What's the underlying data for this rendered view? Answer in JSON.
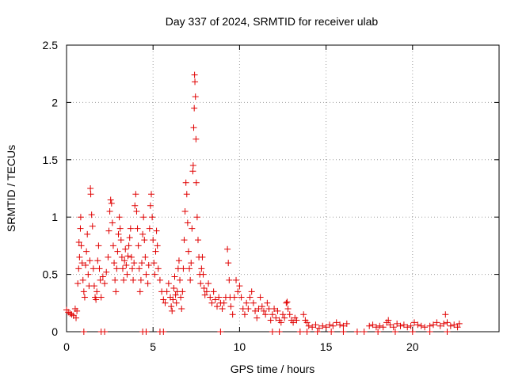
{
  "chart_data": {
    "type": "scatter",
    "title": "Day 337 of 2024, SRMTID for receiver ulab",
    "xlabel": "GPS time / hours",
    "ylabel": "SRMTID / TECUs",
    "xlim": [
      0,
      25
    ],
    "ylim": [
      0,
      2.5
    ],
    "xticks": [
      0,
      5,
      10,
      15,
      20
    ],
    "xtick_labels": [
      "0",
      "5",
      "10",
      "15",
      "20"
    ],
    "yticks": [
      0,
      0.5,
      1,
      1.5,
      2,
      2.5
    ],
    "ytick_labels": [
      "0",
      "0.5",
      "1",
      "1.5",
      "2",
      "2.5"
    ],
    "grid": true,
    "marker": "+",
    "color": "#e00000",
    "series": [
      {
        "name": "SRMTID",
        "points": [
          [
            0.0,
            0.19
          ],
          [
            0.1,
            0.17
          ],
          [
            0.2,
            0.16
          ],
          [
            0.3,
            0.15
          ],
          [
            0.4,
            0.14
          ],
          [
            0.5,
            0.2
          ],
          [
            0.55,
            0.12
          ],
          [
            0.6,
            0.18
          ],
          [
            0.65,
            0.42
          ],
          [
            0.7,
            0.55
          ],
          [
            0.72,
            0.78
          ],
          [
            0.75,
            0.65
          ],
          [
            0.8,
            0.9
          ],
          [
            0.82,
            1.0
          ],
          [
            0.85,
            0.75
          ],
          [
            0.9,
            0.6
          ],
          [
            0.95,
            0.45
          ],
          [
            1.0,
            0.35
          ],
          [
            1.05,
            0.3
          ],
          [
            1.1,
            0.58
          ],
          [
            1.15,
            0.7
          ],
          [
            1.2,
            0.85
          ],
          [
            1.25,
            0.5
          ],
          [
            1.3,
            0.4
          ],
          [
            1.35,
            0.62
          ],
          [
            1.38,
            1.25
          ],
          [
            1.4,
            1.2
          ],
          [
            1.45,
            1.02
          ],
          [
            1.5,
            0.92
          ],
          [
            1.55,
            0.55
          ],
          [
            1.6,
            0.4
          ],
          [
            1.65,
            0.3
          ],
          [
            1.7,
            0.28
          ],
          [
            1.75,
            0.35
          ],
          [
            1.8,
            0.62
          ],
          [
            1.85,
            0.75
          ],
          [
            1.9,
            0.55
          ],
          [
            1.95,
            0.45
          ],
          [
            2.0,
            0.3
          ],
          [
            2.1,
            0.48
          ],
          [
            2.2,
            0.42
          ],
          [
            2.3,
            0.52
          ],
          [
            2.4,
            0.65
          ],
          [
            2.45,
            0.88
          ],
          [
            2.5,
            1.05
          ],
          [
            2.55,
            1.15
          ],
          [
            2.6,
            1.12
          ],
          [
            2.65,
            0.95
          ],
          [
            2.7,
            0.75
          ],
          [
            2.75,
            0.6
          ],
          [
            2.8,
            0.45
          ],
          [
            2.85,
            0.35
          ],
          [
            2.9,
            0.55
          ],
          [
            2.95,
            0.7
          ],
          [
            3.0,
            0.85
          ],
          [
            3.05,
            1.0
          ],
          [
            3.1,
            0.9
          ],
          [
            3.15,
            0.8
          ],
          [
            3.2,
            0.65
          ],
          [
            3.25,
            0.55
          ],
          [
            3.3,
            0.45
          ],
          [
            3.35,
            0.62
          ],
          [
            3.4,
            0.72
          ],
          [
            3.45,
            0.58
          ],
          [
            3.5,
            0.5
          ],
          [
            3.55,
            0.66
          ],
          [
            3.6,
            0.75
          ],
          [
            3.65,
            0.82
          ],
          [
            3.7,
            0.9
          ],
          [
            3.75,
            0.65
          ],
          [
            3.8,
            0.55
          ],
          [
            3.85,
            0.45
          ],
          [
            3.9,
            0.6
          ],
          [
            3.95,
            1.1
          ],
          [
            4.0,
            1.2
          ],
          [
            4.05,
            1.05
          ],
          [
            4.1,
            0.9
          ],
          [
            4.15,
            0.75
          ],
          [
            4.2,
            0.55
          ],
          [
            4.25,
            0.35
          ],
          [
            4.3,
            0.45
          ],
          [
            4.35,
            0.6
          ],
          [
            4.4,
            0.85
          ],
          [
            4.45,
            1.0
          ],
          [
            4.5,
            0.8
          ],
          [
            4.55,
            0.65
          ],
          [
            4.6,
            0.5
          ],
          [
            4.7,
            0.42
          ],
          [
            4.75,
            0.58
          ],
          [
            4.8,
            0.9
          ],
          [
            4.85,
            1.1
          ],
          [
            4.9,
            1.2
          ],
          [
            4.95,
            1.0
          ],
          [
            5.0,
            0.8
          ],
          [
            5.05,
            0.6
          ],
          [
            5.1,
            0.5
          ],
          [
            5.15,
            0.7
          ],
          [
            5.2,
            0.88
          ],
          [
            5.25,
            0.75
          ],
          [
            5.3,
            0.55
          ],
          [
            5.4,
            0.45
          ],
          [
            5.5,
            0.35
          ],
          [
            5.6,
            0.28
          ],
          [
            5.7,
            0.25
          ],
          [
            5.8,
            0.35
          ],
          [
            5.9,
            0.42
          ],
          [
            6.0,
            0.3
          ],
          [
            6.05,
            0.22
          ],
          [
            6.1,
            0.18
          ],
          [
            6.15,
            0.28
          ],
          [
            6.2,
            0.38
          ],
          [
            6.25,
            0.48
          ],
          [
            6.3,
            0.32
          ],
          [
            6.35,
            0.25
          ],
          [
            6.4,
            0.35
          ],
          [
            6.45,
            0.55
          ],
          [
            6.5,
            0.62
          ],
          [
            6.55,
            0.45
          ],
          [
            6.6,
            0.3
          ],
          [
            6.65,
            0.2
          ],
          [
            6.7,
            0.35
          ],
          [
            6.75,
            0.55
          ],
          [
            6.8,
            0.8
          ],
          [
            6.85,
            1.05
          ],
          [
            6.9,
            1.3
          ],
          [
            6.95,
            1.2
          ],
          [
            7.0,
            0.95
          ],
          [
            7.05,
            0.7
          ],
          [
            7.1,
            0.55
          ],
          [
            7.15,
            0.45
          ],
          [
            7.2,
            0.6
          ],
          [
            7.25,
            0.9
          ],
          [
            7.3,
            1.4
          ],
          [
            7.32,
            1.45
          ],
          [
            7.35,
            1.78
          ],
          [
            7.38,
            1.95
          ],
          [
            7.4,
            2.24
          ],
          [
            7.42,
            2.18
          ],
          [
            7.45,
            2.05
          ],
          [
            7.48,
            1.68
          ],
          [
            7.5,
            1.3
          ],
          [
            7.55,
            1.0
          ],
          [
            7.6,
            0.8
          ],
          [
            7.65,
            0.65
          ],
          [
            7.7,
            0.5
          ],
          [
            7.75,
            0.42
          ],
          [
            7.8,
            0.55
          ],
          [
            7.85,
            0.65
          ],
          [
            7.9,
            0.5
          ],
          [
            7.95,
            0.38
          ],
          [
            8.0,
            0.32
          ],
          [
            8.1,
            0.35
          ],
          [
            8.2,
            0.42
          ],
          [
            8.3,
            0.3
          ],
          [
            8.4,
            0.25
          ],
          [
            8.5,
            0.35
          ],
          [
            8.6,
            0.28
          ],
          [
            8.7,
            0.22
          ],
          [
            8.8,
            0.3
          ],
          [
            8.9,
            0.25
          ],
          [
            9.0,
            0.2
          ],
          [
            9.1,
            0.25
          ],
          [
            9.2,
            0.3
          ],
          [
            9.3,
            0.72
          ],
          [
            9.35,
            0.6
          ],
          [
            9.4,
            0.45
          ],
          [
            9.45,
            0.3
          ],
          [
            9.5,
            0.22
          ],
          [
            9.6,
            0.15
          ],
          [
            9.7,
            0.3
          ],
          [
            9.8,
            0.45
          ],
          [
            9.9,
            0.35
          ],
          [
            10.0,
            0.4
          ],
          [
            10.1,
            0.3
          ],
          [
            10.2,
            0.2
          ],
          [
            10.3,
            0.15
          ],
          [
            10.4,
            0.25
          ],
          [
            10.5,
            0.2
          ],
          [
            10.6,
            0.3
          ],
          [
            10.7,
            0.35
          ],
          [
            10.8,
            0.25
          ],
          [
            10.9,
            0.18
          ],
          [
            11.0,
            0.12
          ],
          [
            11.1,
            0.2
          ],
          [
            11.2,
            0.3
          ],
          [
            11.3,
            0.22
          ],
          [
            11.4,
            0.18
          ],
          [
            11.5,
            0.15
          ],
          [
            11.6,
            0.25
          ],
          [
            11.7,
            0.2
          ],
          [
            11.8,
            0.1
          ],
          [
            11.9,
            0.15
          ],
          [
            12.0,
            0.2
          ],
          [
            12.1,
            0.12
          ],
          [
            12.2,
            0.18
          ],
          [
            12.3,
            0.1
          ],
          [
            12.4,
            0.08
          ],
          [
            12.5,
            0.15
          ],
          [
            12.6,
            0.12
          ],
          [
            12.7,
            0.25
          ],
          [
            12.75,
            0.26
          ],
          [
            12.8,
            0.2
          ],
          [
            12.9,
            0.15
          ],
          [
            13.0,
            0.1
          ],
          [
            13.1,
            0.08
          ],
          [
            13.2,
            0.12
          ],
          [
            13.3,
            0.1
          ],
          [
            13.7,
            0.15
          ],
          [
            13.8,
            0.1
          ],
          [
            13.9,
            0.08
          ],
          [
            14.0,
            0.05
          ],
          [
            14.2,
            0.04
          ],
          [
            14.4,
            0.06
          ],
          [
            14.6,
            0.03
          ],
          [
            14.8,
            0.05
          ],
          [
            15.0,
            0.04
          ],
          [
            15.2,
            0.06
          ],
          [
            15.4,
            0.05
          ],
          [
            15.6,
            0.08
          ],
          [
            15.8,
            0.06
          ],
          [
            16.0,
            0.05
          ],
          [
            16.2,
            0.07
          ],
          [
            17.5,
            0.05
          ],
          [
            17.7,
            0.06
          ],
          [
            17.9,
            0.04
          ],
          [
            18.1,
            0.05
          ],
          [
            18.3,
            0.04
          ],
          [
            18.5,
            0.08
          ],
          [
            18.6,
            0.1
          ],
          [
            18.7,
            0.06
          ],
          [
            18.9,
            0.04
          ],
          [
            19.1,
            0.07
          ],
          [
            19.3,
            0.05
          ],
          [
            19.5,
            0.06
          ],
          [
            19.7,
            0.04
          ],
          [
            19.9,
            0.05
          ],
          [
            20.1,
            0.08
          ],
          [
            20.3,
            0.06
          ],
          [
            20.5,
            0.05
          ],
          [
            20.7,
            0.04
          ],
          [
            21.0,
            0.05
          ],
          [
            21.2,
            0.06
          ],
          [
            21.4,
            0.08
          ],
          [
            21.6,
            0.05
          ],
          [
            21.8,
            0.07
          ],
          [
            21.9,
            0.15
          ],
          [
            22.0,
            0.08
          ],
          [
            22.2,
            0.05
          ],
          [
            22.4,
            0.06
          ],
          [
            22.6,
            0.04
          ],
          [
            22.7,
            0.07
          ],
          [
            1.0,
            0.0
          ],
          [
            2.0,
            0.0
          ],
          [
            2.2,
            0.0
          ],
          [
            4.4,
            0.0
          ],
          [
            4.6,
            0.0
          ],
          [
            5.4,
            0.0
          ],
          [
            5.6,
            0.0
          ],
          [
            8.9,
            0.0
          ],
          [
            11.9,
            0.0
          ],
          [
            12.3,
            0.0
          ],
          [
            13.5,
            0.0
          ],
          [
            13.9,
            0.0
          ],
          [
            14.5,
            0.0
          ],
          [
            15.3,
            0.0
          ],
          [
            16.0,
            0.0
          ],
          [
            16.8,
            0.0
          ],
          [
            17.2,
            0.0
          ],
          [
            18.0,
            0.0
          ],
          [
            19.0,
            0.0
          ],
          [
            20.0,
            0.0
          ],
          [
            21.0,
            0.0
          ],
          [
            22.0,
            0.0
          ]
        ]
      }
    ]
  }
}
